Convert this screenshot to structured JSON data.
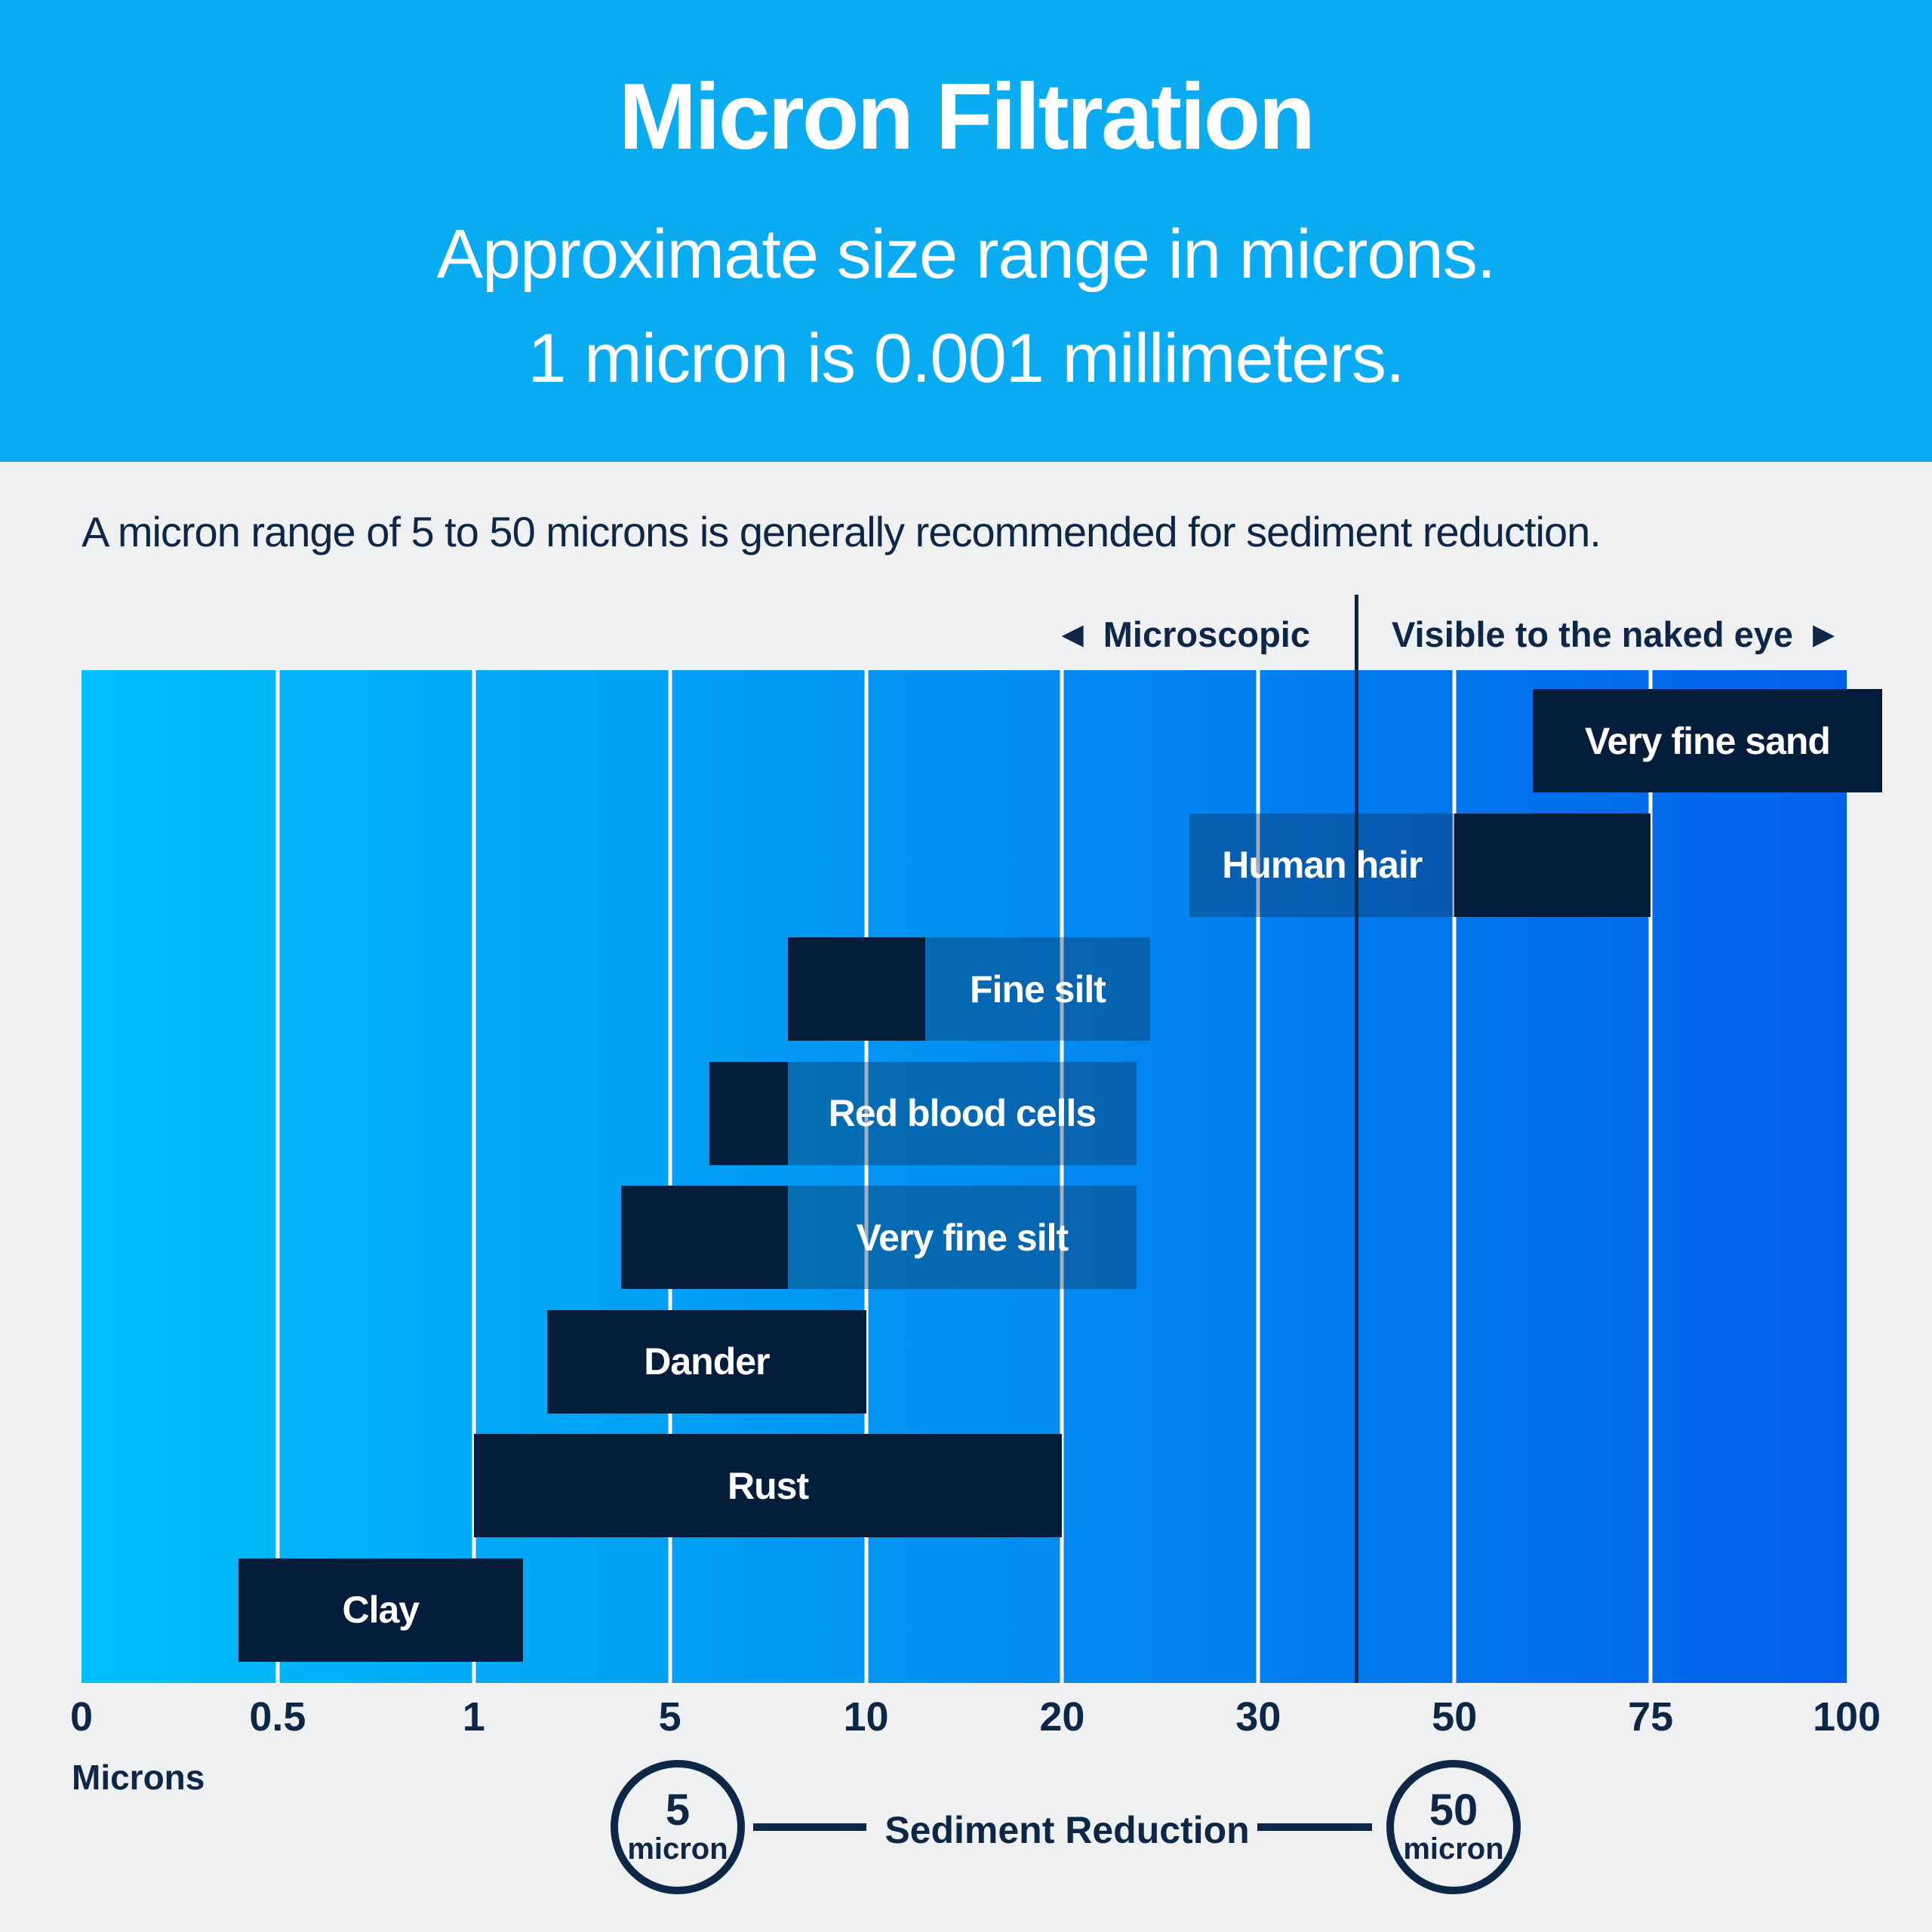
{
  "colors": {
    "page_bg": "#EFF0F1",
    "header_bg": "#0AABF0",
    "navy_text": "#0E2747",
    "bar": "#041D3B",
    "label_box": "rgba(16,42,74,0.38)",
    "gridline": "#FFFFFF",
    "gradient_left": "#00BFFA",
    "gradient_right": "#0360EB",
    "text_on_bar": "#FFFFFF"
  },
  "header": {
    "title": "Micron Filtration",
    "subtitle_line1": "Approximate size range in microns.",
    "subtitle_line2": "1 micron is 0.001 millimeters."
  },
  "note": "A micron range of 5 to 50 microns is generally recommended for sediment reduction.",
  "zones": {
    "left_arrow": "◀",
    "left_label": "Microscopic",
    "right_label": "Visible to the naked eye",
    "right_arrow": "▶",
    "divider_micron": 40
  },
  "chart_data": {
    "type": "bar",
    "orientation": "horizontal-range",
    "unit": "microns",
    "title": "Micron Filtration — approximate particle size ranges",
    "xlabel": "Microns",
    "axis_tick_values": [
      0,
      0.5,
      1,
      5,
      10,
      20,
      30,
      50,
      75,
      100
    ],
    "axis_tick_labels": [
      "0",
      "0.5",
      "1",
      "5",
      "10",
      "20",
      "30",
      "50",
      "75",
      "100"
    ],
    "x_scale": "piecewise-linear; ticks evenly spaced",
    "grid": true,
    "legend_position": "none",
    "bars": [
      {
        "label": "Very fine sand",
        "range_microns": [
          60,
          104.5
        ],
        "extends_past_axis": true,
        "label_position": "inside-bar"
      },
      {
        "label": "Human hair",
        "range_microns": [
          50,
          75
        ],
        "label_box_microns": [
          26.5,
          50
        ],
        "label_position": "left-label-box"
      },
      {
        "label": "Fine silt",
        "range_microns": [
          8,
          13
        ],
        "label_box_microns": [
          13,
          24.5
        ],
        "label_position": "right-label-box"
      },
      {
        "label": "Red blood cells",
        "range_microns": [
          6,
          8
        ],
        "label_box_microns": [
          8,
          23.8
        ],
        "label_position": "right-label-box"
      },
      {
        "label": "Very fine silt",
        "range_microns": [
          4,
          8
        ],
        "label_box_microns": [
          8,
          23.8
        ],
        "label_position": "right-label-box"
      },
      {
        "label": "Dander",
        "range_microns": [
          2.5,
          10
        ],
        "label_position": "inside-bar"
      },
      {
        "label": "Rust",
        "range_microns": [
          1,
          20
        ],
        "label_position": "inside-bar"
      },
      {
        "label": "Clay",
        "range_microns": [
          0.4,
          2
        ],
        "label_position": "inside-bar"
      }
    ]
  },
  "axis": {
    "label": "Microns"
  },
  "legend": {
    "left_circle_value": "5",
    "left_circle_unit": "micron",
    "center_label": "Sediment Reduction",
    "right_circle_value": "50",
    "right_circle_unit": "micron",
    "left_circle_micron": 5,
    "right_circle_micron": 50
  }
}
